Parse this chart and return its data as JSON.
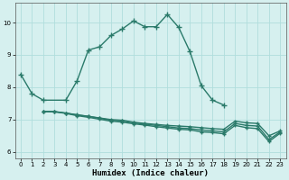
{
  "xlabel": "Humidex (Indice chaleur)",
  "line1": {
    "x": [
      0,
      1,
      2,
      4,
      5,
      6,
      7,
      8,
      9,
      10,
      11,
      12,
      13,
      14,
      15,
      16,
      17,
      18
    ],
    "y": [
      8.4,
      7.8,
      7.6,
      7.6,
      8.2,
      9.15,
      9.25,
      9.6,
      9.8,
      10.05,
      9.87,
      9.87,
      10.25,
      9.85,
      9.1,
      8.05,
      7.6,
      7.45
    ],
    "color": "#2a7a6a",
    "marker": "+",
    "markersize": 4,
    "linewidth": 1.0
  },
  "line2": {
    "x": [
      2,
      3,
      4,
      5,
      6,
      7,
      8,
      9,
      10,
      11,
      12,
      13,
      14,
      15,
      16,
      17,
      18,
      19,
      20,
      21,
      22,
      23
    ],
    "y": [
      7.25,
      7.25,
      7.2,
      7.15,
      7.1,
      7.05,
      7.0,
      6.98,
      6.92,
      6.88,
      6.85,
      6.82,
      6.8,
      6.78,
      6.75,
      6.72,
      6.7,
      6.95,
      6.9,
      6.88,
      6.5,
      6.65
    ],
    "color": "#2a7a6a",
    "marker": "+",
    "markersize": 3,
    "linewidth": 1.0
  },
  "line3": {
    "x": [
      2,
      3,
      4,
      5,
      6,
      7,
      8,
      9,
      10,
      11,
      12,
      13,
      14,
      15,
      16,
      17,
      18,
      19,
      20,
      21,
      22,
      23
    ],
    "y": [
      7.25,
      7.24,
      7.2,
      7.14,
      7.1,
      7.04,
      6.98,
      6.96,
      6.9,
      6.86,
      6.82,
      6.78,
      6.74,
      6.72,
      6.68,
      6.65,
      6.62,
      6.88,
      6.82,
      6.8,
      6.38,
      6.62
    ],
    "color": "#2a7a6a",
    "marker": "+",
    "markersize": 3,
    "linewidth": 1.0
  },
  "line4": {
    "x": [
      2,
      3,
      4,
      5,
      6,
      7,
      8,
      9,
      10,
      11,
      12,
      13,
      14,
      15,
      16,
      17,
      18,
      19,
      20,
      21,
      22,
      23
    ],
    "y": [
      7.25,
      7.24,
      7.19,
      7.12,
      7.07,
      7.01,
      6.95,
      6.92,
      6.87,
      6.83,
      6.78,
      6.74,
      6.7,
      6.68,
      6.62,
      6.6,
      6.56,
      6.82,
      6.75,
      6.72,
      6.32,
      6.58
    ],
    "color": "#2a7a6a",
    "marker": "+",
    "markersize": 3,
    "linewidth": 1.0
  },
  "bg_color": "#d6f0ef",
  "grid_color": "#b0dedd",
  "ylim": [
    5.8,
    10.6
  ],
  "xlim": [
    -0.5,
    23.5
  ],
  "yticks": [
    6,
    7,
    8,
    9,
    10
  ],
  "xticks": [
    0,
    1,
    2,
    3,
    4,
    5,
    6,
    7,
    8,
    9,
    10,
    11,
    12,
    13,
    14,
    15,
    16,
    17,
    18,
    19,
    20,
    21,
    22,
    23
  ]
}
